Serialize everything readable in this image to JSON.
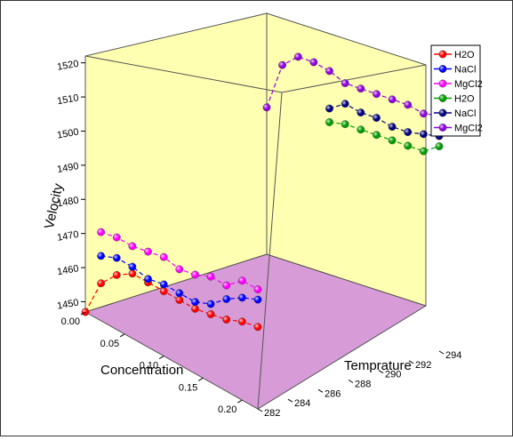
{
  "chart_data": {
    "type": "scatter3d",
    "xlabel": "Concentration",
    "ylabel": "Temprature",
    "zlabel": "Velocity",
    "x_ticks": [
      "0.00",
      "0.05",
      "0.10",
      "0.15",
      "0.20"
    ],
    "y_ticks": [
      "282",
      "284",
      "286",
      "288",
      "290",
      "292",
      "294"
    ],
    "z_ticks": [
      "1450",
      "1460",
      "1470",
      "1480",
      "1490",
      "1500",
      "1510",
      "1520"
    ],
    "xlim": [
      0.0,
      0.22
    ],
    "ylim": [
      282,
      294
    ],
    "zlim": [
      1447,
      1522
    ],
    "legend_position": "top-right",
    "series": [
      {
        "name": "H2O",
        "color": "#ff0000",
        "y_level": 282,
        "x": [
          0,
          0.02,
          0.04,
          0.06,
          0.08,
          0.1,
          0.12,
          0.14,
          0.16,
          0.18,
          0.2,
          0.22
        ],
        "z": [
          1447,
          1458,
          1463,
          1466,
          1466,
          1466,
          1466,
          1466,
          1467,
          1468,
          1470,
          1471
        ]
      },
      {
        "name": "NaCl",
        "color": "#0000ff",
        "y_level": 282,
        "x": [
          0.02,
          0.04,
          0.06,
          0.08,
          0.1,
          0.12,
          0.14,
          0.16,
          0.18,
          0.2,
          0.22
        ],
        "z": [
          1466,
          1468,
          1468,
          1467,
          1468,
          1468,
          1468,
          1470,
          1474,
          1477,
          1479
        ]
      },
      {
        "name": "MgCl2",
        "color": "#ff00ff",
        "y_level": 282,
        "x": [
          0.02,
          0.04,
          0.06,
          0.08,
          0.1,
          0.12,
          0.14,
          0.16,
          0.18,
          0.2,
          0.22
        ],
        "z": [
          1473,
          1474,
          1474,
          1475,
          1476,
          1475,
          1476,
          1478,
          1478,
          1482,
          1482
        ]
      },
      {
        "name": "H2O",
        "color": "#00a000",
        "y_level": 294,
        "x": [
          0.08,
          0.1,
          0.12,
          0.14,
          0.16,
          0.18,
          0.2,
          0.22
        ],
        "z": [
          1496,
          1498,
          1499,
          1500,
          1501,
          1502,
          1503,
          1507
        ]
      },
      {
        "name": "NaCl",
        "color": "#000080",
        "y_level": 294,
        "x": [
          0.08,
          0.1,
          0.12,
          0.14,
          0.16,
          0.18,
          0.2,
          0.22
        ],
        "z": [
          1500,
          1504,
          1504,
          1505,
          1505,
          1506,
          1508,
          1510
        ]
      },
      {
        "name": "MgCl2",
        "color": "#9000e0",
        "y_level": 294,
        "x": [
          0,
          0.02,
          0.04,
          0.06,
          0.08,
          0.1,
          0.12,
          0.14,
          0.16,
          0.18,
          0.2,
          0.22
        ],
        "z": [
          1490,
          1505,
          1510,
          1511,
          1511,
          1510,
          1511,
          1512,
          1513,
          1514,
          1514,
          1516
        ]
      }
    ],
    "wall_color": "#ffffa8",
    "floor_color": "#d79bd7"
  }
}
